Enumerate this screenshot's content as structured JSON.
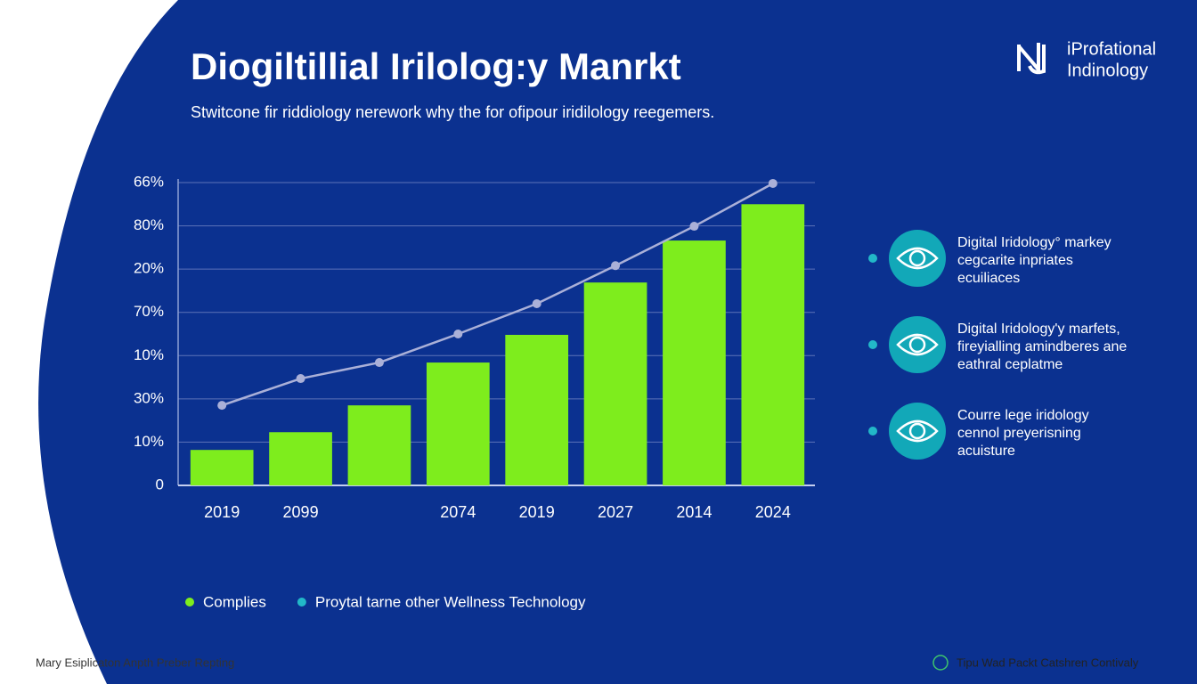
{
  "header": {
    "title": "Diogiltillial Irilolog:y Manrkt",
    "subtitle": "Stwitcone fir riddiology nerework why the for ofipour iridilology reegemers."
  },
  "logo": {
    "lines": [
      "iProfational",
      "Indinology"
    ]
  },
  "chart_data": {
    "type": "bar",
    "categories": [
      "2019",
      "2099",
      null,
      "2074",
      "2019",
      "2027",
      "2014",
      "2024"
    ],
    "series": [
      {
        "name": "Complies",
        "color": "#7eed1d",
        "legend_color": "#7eed1d",
        "type": "bar",
        "values": [
          0.82,
          1.23,
          1.85,
          2.84,
          3.48,
          4.69,
          5.66,
          6.5
        ]
      },
      {
        "name": "Proytal tarne other Wellness Technology",
        "color": "#aab0d8",
        "legend_color": "#22b8c8",
        "type": "line",
        "values": [
          1.85,
          2.47,
          2.84,
          3.5,
          4.2,
          5.08,
          5.99,
          6.98
        ]
      }
    ],
    "ylim": [
      0,
      7
    ],
    "yticks": [
      0,
      {
        "value": 1,
        "label": "10%"
      },
      {
        "value": 2,
        "label": "30%"
      },
      {
        "value": 3,
        "label": "10%"
      },
      {
        "value": 4,
        "label": "70%"
      },
      {
        "value": 5,
        "label": "20%"
      },
      {
        "value": 6,
        "label": "80%"
      },
      {
        "value": 7,
        "label": "66%"
      }
    ],
    "grid": true
  },
  "features": [
    {
      "lines": [
        "Digital Iridology° markey",
        "cegcarite inpriates",
        "ecuiliaces"
      ]
    },
    {
      "lines": [
        "Digital Iridology'y marfets,",
        "fireyialling amindberes ane",
        "eathral ceplatme"
      ]
    },
    {
      "lines": [
        "Courre lege iridology",
        "cennol preyerisning",
        "acuisture"
      ]
    }
  ],
  "footer": {
    "left": "Mary Esiplicaton Anpth Preber Repting",
    "right": "Tipu Wad Packt Catshren Contivaly"
  }
}
